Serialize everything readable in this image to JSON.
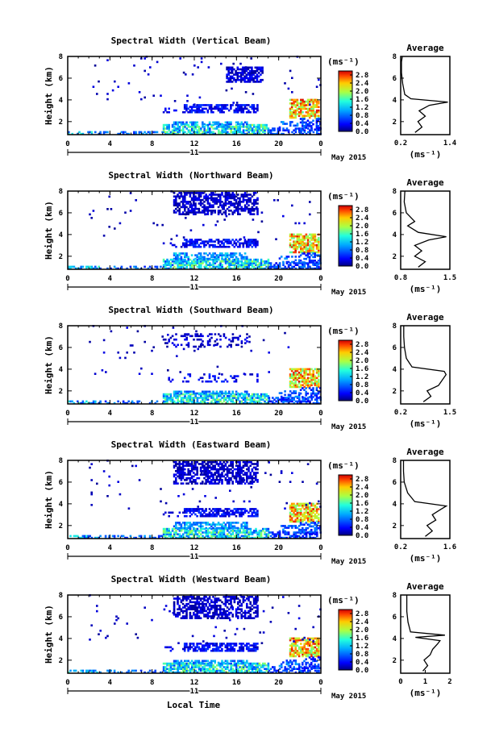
{
  "figure": {
    "xlabel": "Local Time",
    "date_label": "May 2015",
    "day_label": "11",
    "ylabel": "Height (km)",
    "colorbar_unit": "(ms⁻¹)",
    "avg_unit": "(ms⁻¹)"
  },
  "chart_data": [
    {
      "type": "heatmap",
      "title": "Spectral Width (Vertical Beam)",
      "xlabel": "Local Time",
      "ylabel": "Height (km)",
      "x_ticks": [
        "0",
        "4",
        "8",
        "12",
        "16",
        "20",
        "0"
      ],
      "y_ticks": [
        "2",
        "4",
        "6",
        "8"
      ],
      "xlim": [
        0,
        24
      ],
      "ylim": [
        0.8,
        8
      ],
      "colorbar_ticks": [
        "0.0",
        "0.4",
        "0.8",
        "1.2",
        "1.6",
        "2.0",
        "2.4",
        "2.8"
      ],
      "colorbar_range": [
        0.0,
        3.0
      ],
      "average": {
        "title": "Average",
        "x_ticks": [
          "0.2",
          "1.4"
        ],
        "xlim": [
          0.2,
          1.4
        ],
        "profile": [
          [
            0.55,
            1.0
          ],
          [
            0.72,
            1.5
          ],
          [
            0.62,
            2.0
          ],
          [
            0.8,
            2.5
          ],
          [
            0.65,
            3.0
          ],
          [
            0.9,
            3.5
          ],
          [
            1.35,
            3.8
          ],
          [
            0.45,
            4.1
          ],
          [
            0.3,
            4.5
          ],
          [
            0.25,
            5.5
          ],
          [
            0.22,
            6.5
          ],
          [
            0.22,
            7.5
          ],
          [
            0.24,
            8.0
          ]
        ]
      }
    },
    {
      "type": "heatmap",
      "title": "Spectral Width (Northward Beam)",
      "xlabel": "Local Time",
      "ylabel": "Height (km)",
      "x_ticks": [
        "0",
        "4",
        "8",
        "12",
        "16",
        "20",
        "0"
      ],
      "y_ticks": [
        "2",
        "4",
        "6",
        "8"
      ],
      "xlim": [
        0,
        24
      ],
      "ylim": [
        0.8,
        8
      ],
      "colorbar_ticks": [
        "0.0",
        "0.4",
        "0.8",
        "1.2",
        "1.6",
        "2.0",
        "2.4",
        "2.8"
      ],
      "colorbar_range": [
        0.0,
        3.0
      ],
      "average": {
        "title": "Average",
        "x_ticks": [
          "0.8",
          "1.5"
        ],
        "xlim": [
          0.8,
          1.5
        ],
        "profile": [
          [
            1.05,
            1.0
          ],
          [
            1.15,
            1.5
          ],
          [
            1.0,
            2.0
          ],
          [
            1.1,
            2.5
          ],
          [
            1.0,
            3.0
          ],
          [
            1.2,
            3.5
          ],
          [
            1.45,
            3.8
          ],
          [
            1.05,
            4.2
          ],
          [
            0.9,
            4.8
          ],
          [
            1.0,
            5.2
          ],
          [
            0.88,
            6.0
          ],
          [
            0.85,
            7.0
          ],
          [
            0.86,
            8.0
          ]
        ]
      }
    },
    {
      "type": "heatmap",
      "title": "Spectral Width (Southward Beam)",
      "xlabel": "Local Time",
      "ylabel": "Height (km)",
      "x_ticks": [
        "0",
        "4",
        "8",
        "12",
        "16",
        "20",
        "0"
      ],
      "y_ticks": [
        "2",
        "4",
        "6",
        "8"
      ],
      "xlim": [
        0,
        24
      ],
      "ylim": [
        0.8,
        8
      ],
      "colorbar_ticks": [
        "0.0",
        "0.4",
        "0.8",
        "1.2",
        "1.6",
        "2.0",
        "2.4",
        "2.8"
      ],
      "colorbar_range": [
        0.0,
        3.0
      ],
      "average": {
        "title": "Average",
        "x_ticks": [
          "0.2",
          "1.5"
        ],
        "xlim": [
          0.2,
          1.5
        ],
        "profile": [
          [
            0.8,
            1.0
          ],
          [
            1.0,
            1.5
          ],
          [
            0.9,
            2.0
          ],
          [
            1.2,
            2.5
          ],
          [
            1.3,
            3.0
          ],
          [
            1.4,
            3.5
          ],
          [
            1.35,
            3.8
          ],
          [
            0.5,
            4.2
          ],
          [
            0.35,
            5.0
          ],
          [
            0.3,
            6.0
          ],
          [
            0.28,
            7.0
          ],
          [
            0.28,
            8.0
          ]
        ]
      }
    },
    {
      "type": "heatmap",
      "title": "Spectral Width (Eastward Beam)",
      "xlabel": "Local Time",
      "ylabel": "Height (km)",
      "x_ticks": [
        "0",
        "4",
        "8",
        "12",
        "16",
        "20",
        "0"
      ],
      "y_ticks": [
        "2",
        "4",
        "6",
        "8"
      ],
      "xlim": [
        0,
        24
      ],
      "ylim": [
        0.8,
        8
      ],
      "colorbar_ticks": [
        "0.0",
        "0.4",
        "0.8",
        "1.2",
        "1.6",
        "2.0",
        "2.4",
        "2.8"
      ],
      "colorbar_range": [
        0.0,
        3.0
      ],
      "average": {
        "title": "Average",
        "x_ticks": [
          "0.2",
          "1.6"
        ],
        "xlim": [
          0.2,
          1.6
        ],
        "profile": [
          [
            0.9,
            1.0
          ],
          [
            1.1,
            1.5
          ],
          [
            0.95,
            2.0
          ],
          [
            1.2,
            2.5
          ],
          [
            1.1,
            3.0
          ],
          [
            1.35,
            3.5
          ],
          [
            1.5,
            3.8
          ],
          [
            0.6,
            4.2
          ],
          [
            0.4,
            5.0
          ],
          [
            0.3,
            6.0
          ],
          [
            0.28,
            7.0
          ],
          [
            0.28,
            8.0
          ]
        ]
      }
    },
    {
      "type": "heatmap",
      "title": "Spectral Width (Westward Beam)",
      "xlabel": "Local Time",
      "ylabel": "Height (km)",
      "x_ticks": [
        "0",
        "4",
        "8",
        "12",
        "16",
        "20",
        "0"
      ],
      "y_ticks": [
        "2",
        "4",
        "6",
        "8"
      ],
      "xlim": [
        0,
        24
      ],
      "ylim": [
        0.8,
        8
      ],
      "colorbar_ticks": [
        "0.0",
        "0.4",
        "0.8",
        "1.2",
        "1.6",
        "2.0",
        "2.4",
        "2.8"
      ],
      "colorbar_range": [
        0.0,
        3.0
      ],
      "average": {
        "title": "Average",
        "x_ticks": [
          "0",
          "1",
          "2"
        ],
        "xlim": [
          0,
          2
        ],
        "profile": [
          [
            0.9,
            1.0
          ],
          [
            1.1,
            1.5
          ],
          [
            0.95,
            2.0
          ],
          [
            1.2,
            2.5
          ],
          [
            1.3,
            3.0
          ],
          [
            1.5,
            3.5
          ],
          [
            1.6,
            3.8
          ],
          [
            0.6,
            4.1
          ],
          [
            1.8,
            4.3
          ],
          [
            0.4,
            4.6
          ],
          [
            0.3,
            5.5
          ],
          [
            0.25,
            6.5
          ],
          [
            0.25,
            8.0
          ]
        ]
      }
    }
  ]
}
